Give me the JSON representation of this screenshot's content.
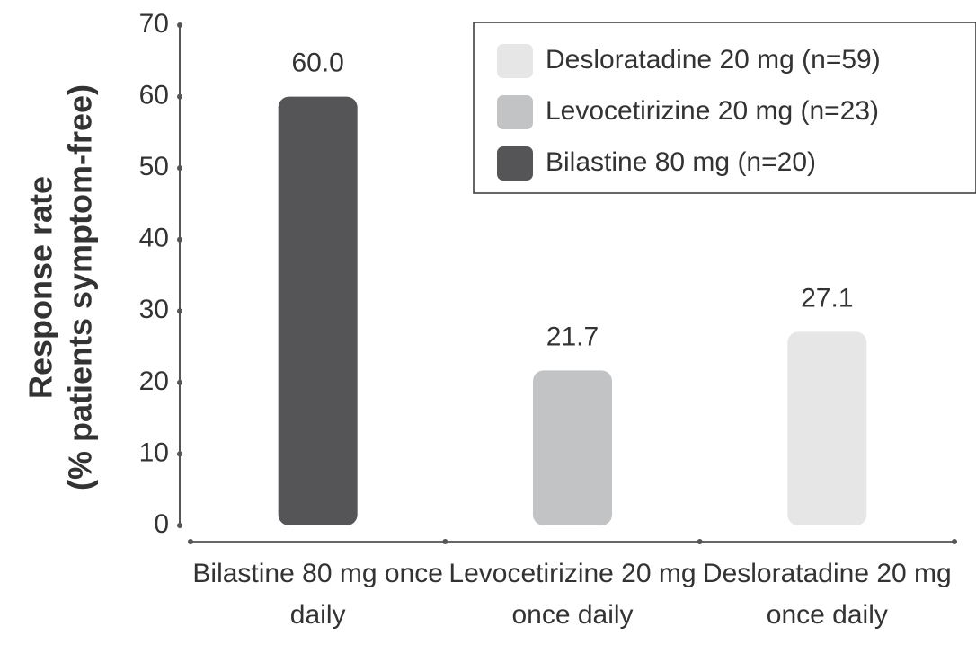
{
  "chart_data": {
    "type": "bar",
    "y_label": [
      "Response rate",
      "(% patients symptom-free)"
    ],
    "categories": [
      "Bilastine 80 mg once daily",
      "Levocetirizine 20 mg once daily",
      "Desloratadine 20 mg once daily"
    ],
    "series": [
      {
        "name": "Desloratadine 20 mg (n=59)",
        "color": "#e6e6e6",
        "values": [
          null,
          null,
          27.1
        ],
        "value_labels": [
          null,
          null,
          "27.1"
        ]
      },
      {
        "name": "Levocetirizine 20 mg (n=23)",
        "color": "#c2c3c5",
        "values": [
          null,
          21.7,
          null
        ],
        "value_labels": [
          null,
          "21.7",
          null
        ]
      },
      {
        "name": "Bilastine 80 mg (n=20)",
        "color": "#555558",
        "values": [
          60,
          null,
          null
        ],
        "value_labels": [
          "60.0",
          null,
          null
        ]
      }
    ],
    "ylim": [
      0,
      70
    ],
    "yticks": [
      0,
      10,
      20,
      30,
      40,
      50,
      60,
      70
    ],
    "legend": "upper right"
  }
}
